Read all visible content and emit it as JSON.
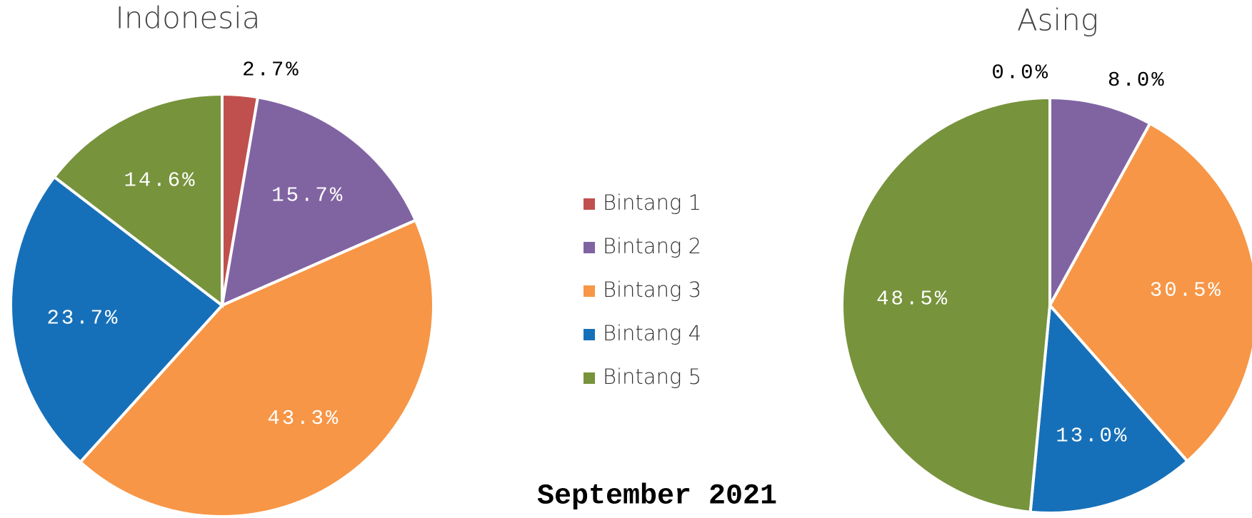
{
  "chart_data": [
    {
      "type": "pie",
      "title": "Indonesia",
      "categories": [
        "Bintang 1",
        "Bintang 2",
        "Bintang 3",
        "Bintang 4",
        "Bintang 5"
      ],
      "values": [
        2.7,
        15.7,
        43.3,
        23.7,
        14.6
      ],
      "value_labels": [
        "2.7%",
        "15.7%",
        "43.3%",
        "23.7%",
        "14.6%"
      ],
      "colors": [
        "#c0504d",
        "#8064a2",
        "#f79646",
        "#1670b9",
        "#77933c"
      ]
    },
    {
      "type": "pie",
      "title": "Asing",
      "categories": [
        "Bintang 1",
        "Bintang 2",
        "Bintang 3",
        "Bintang 4",
        "Bintang 5"
      ],
      "values": [
        0.0,
        8.0,
        30.5,
        13.0,
        48.5
      ],
      "value_labels": [
        "0.0%",
        "8.0%",
        "30.5%",
        "13.0%",
        "48.5%"
      ],
      "colors": [
        "#c0504d",
        "#8064a2",
        "#f79646",
        "#1670b9",
        "#77933c"
      ]
    }
  ],
  "caption": "September 2021"
}
